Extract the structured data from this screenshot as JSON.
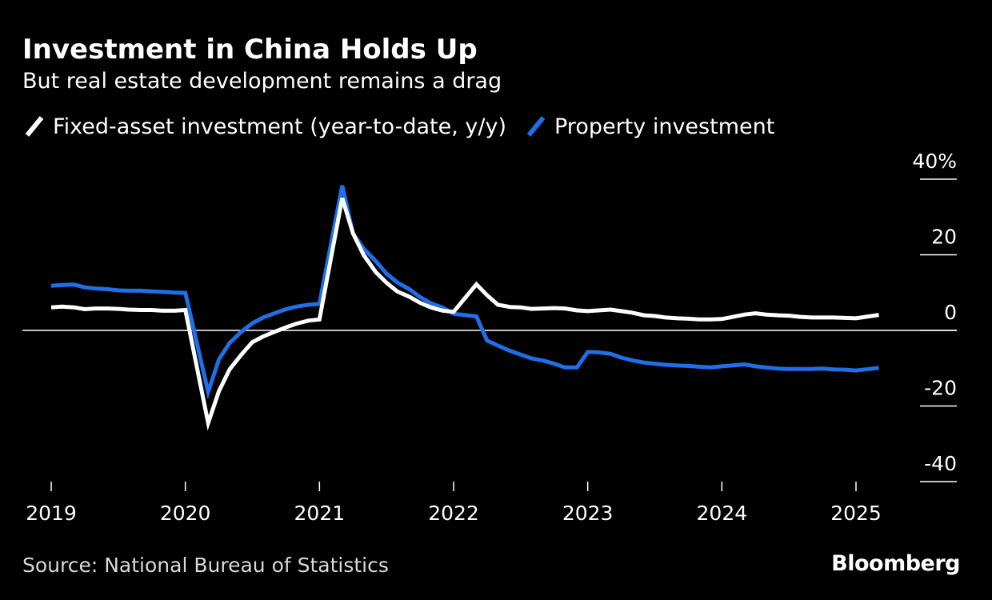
{
  "colors": {
    "background": "#000000",
    "text": "#ffffff",
    "muted": "#d9d9d9",
    "series_fai": "#ffffff",
    "series_property": "#1f6fe8"
  },
  "legend": {
    "fai_label": "Fixed-asset investment (year-to-date, y/y)",
    "property_label": "Property investment"
  },
  "footer": {
    "source": "Source: National Bureau of Statistics",
    "brand": "Bloomberg"
  },
  "chart_data": {
    "type": "line",
    "title": "Investment in China Holds Up",
    "subtitle": "But real estate development remains a drag",
    "xlabel": "",
    "ylabel": "",
    "xlim": [
      2019,
      2025.25
    ],
    "ylim": [
      -40,
      40
    ],
    "x_ticks": [
      2019,
      2020,
      2021,
      2022,
      2023,
      2024,
      2025
    ],
    "y_ticks": [
      {
        "value": 40,
        "label": "40%"
      },
      {
        "value": 20,
        "label": "20"
      },
      {
        "value": 0,
        "label": "0"
      },
      {
        "value": -20,
        "label": "-20"
      },
      {
        "value": -40,
        "label": "-40"
      }
    ],
    "zero_line": true,
    "grid": false,
    "legend_position": "top-left",
    "series": [
      {
        "name": "Fixed-asset investment (year-to-date, y/y)",
        "color_key": "series_fai",
        "points": [
          [
            2019.0,
            6.1
          ],
          [
            2019.08,
            6.3
          ],
          [
            2019.17,
            6.1
          ],
          [
            2019.25,
            5.6
          ],
          [
            2019.33,
            5.8
          ],
          [
            2019.42,
            5.8
          ],
          [
            2019.5,
            5.7
          ],
          [
            2019.58,
            5.5
          ],
          [
            2019.67,
            5.4
          ],
          [
            2019.75,
            5.4
          ],
          [
            2019.83,
            5.2
          ],
          [
            2019.92,
            5.2
          ],
          [
            2020.0,
            5.4
          ],
          [
            2020.17,
            -24.5
          ],
          [
            2020.25,
            -16.1
          ],
          [
            2020.33,
            -10.3
          ],
          [
            2020.42,
            -6.3
          ],
          [
            2020.5,
            -3.1
          ],
          [
            2020.58,
            -1.6
          ],
          [
            2020.67,
            -0.3
          ],
          [
            2020.75,
            0.8
          ],
          [
            2020.83,
            1.8
          ],
          [
            2020.92,
            2.6
          ],
          [
            2021.0,
            2.9
          ],
          [
            2021.17,
            35.0
          ],
          [
            2021.25,
            25.6
          ],
          [
            2021.33,
            19.9
          ],
          [
            2021.42,
            15.4
          ],
          [
            2021.5,
            12.6
          ],
          [
            2021.58,
            10.3
          ],
          [
            2021.67,
            8.9
          ],
          [
            2021.75,
            7.3
          ],
          [
            2021.83,
            6.1
          ],
          [
            2021.92,
            5.2
          ],
          [
            2022.0,
            4.9
          ],
          [
            2022.17,
            12.2
          ],
          [
            2022.25,
            9.3
          ],
          [
            2022.33,
            6.8
          ],
          [
            2022.42,
            6.2
          ],
          [
            2022.5,
            6.1
          ],
          [
            2022.58,
            5.7
          ],
          [
            2022.67,
            5.8
          ],
          [
            2022.75,
            5.9
          ],
          [
            2022.83,
            5.8
          ],
          [
            2022.92,
            5.3
          ],
          [
            2023.0,
            5.1
          ],
          [
            2023.17,
            5.5
          ],
          [
            2023.25,
            5.1
          ],
          [
            2023.33,
            4.7
          ],
          [
            2023.42,
            4.0
          ],
          [
            2023.5,
            3.8
          ],
          [
            2023.58,
            3.4
          ],
          [
            2023.67,
            3.2
          ],
          [
            2023.75,
            3.1
          ],
          [
            2023.83,
            2.9
          ],
          [
            2023.92,
            2.9
          ],
          [
            2024.0,
            3.0
          ],
          [
            2024.17,
            4.2
          ],
          [
            2024.25,
            4.5
          ],
          [
            2024.33,
            4.2
          ],
          [
            2024.42,
            4.0
          ],
          [
            2024.5,
            3.9
          ],
          [
            2024.58,
            3.6
          ],
          [
            2024.67,
            3.4
          ],
          [
            2024.75,
            3.4
          ],
          [
            2024.83,
            3.4
          ],
          [
            2024.92,
            3.3
          ],
          [
            2025.0,
            3.2
          ],
          [
            2025.17,
            4.1
          ]
        ]
      },
      {
        "name": "Property investment",
        "color_key": "series_property",
        "points": [
          [
            2019.0,
            11.8
          ],
          [
            2019.08,
            12.0
          ],
          [
            2019.17,
            12.1
          ],
          [
            2019.25,
            11.4
          ],
          [
            2019.33,
            11.1
          ],
          [
            2019.42,
            10.9
          ],
          [
            2019.5,
            10.6
          ],
          [
            2019.58,
            10.5
          ],
          [
            2019.67,
            10.5
          ],
          [
            2019.75,
            10.3
          ],
          [
            2019.83,
            10.2
          ],
          [
            2019.92,
            10.0
          ],
          [
            2020.0,
            9.9
          ],
          [
            2020.17,
            -16.3
          ],
          [
            2020.25,
            -7.7
          ],
          [
            2020.33,
            -3.3
          ],
          [
            2020.42,
            -0.3
          ],
          [
            2020.5,
            1.9
          ],
          [
            2020.58,
            3.4
          ],
          [
            2020.67,
            4.6
          ],
          [
            2020.75,
            5.6
          ],
          [
            2020.83,
            6.3
          ],
          [
            2020.92,
            6.8
          ],
          [
            2021.0,
            7.0
          ],
          [
            2021.17,
            38.3
          ],
          [
            2021.25,
            25.6
          ],
          [
            2021.33,
            21.6
          ],
          [
            2021.42,
            18.3
          ],
          [
            2021.5,
            15.0
          ],
          [
            2021.58,
            12.7
          ],
          [
            2021.67,
            10.9
          ],
          [
            2021.75,
            8.8
          ],
          [
            2021.83,
            7.2
          ],
          [
            2021.92,
            6.0
          ],
          [
            2022.0,
            4.4
          ],
          [
            2022.17,
            3.7
          ],
          [
            2022.25,
            -2.7
          ],
          [
            2022.33,
            -4.0
          ],
          [
            2022.42,
            -5.4
          ],
          [
            2022.5,
            -6.4
          ],
          [
            2022.58,
            -7.4
          ],
          [
            2022.67,
            -8.0
          ],
          [
            2022.75,
            -8.8
          ],
          [
            2022.83,
            -9.8
          ],
          [
            2022.92,
            -9.8
          ],
          [
            2023.0,
            -5.7
          ],
          [
            2023.08,
            -5.8
          ],
          [
            2023.17,
            -6.2
          ],
          [
            2023.25,
            -7.2
          ],
          [
            2023.33,
            -7.9
          ],
          [
            2023.42,
            -8.5
          ],
          [
            2023.5,
            -8.8
          ],
          [
            2023.58,
            -9.1
          ],
          [
            2023.67,
            -9.3
          ],
          [
            2023.75,
            -9.4
          ],
          [
            2023.83,
            -9.6
          ],
          [
            2023.92,
            -9.8
          ],
          [
            2024.0,
            -9.5
          ],
          [
            2024.17,
            -9.0
          ],
          [
            2024.25,
            -9.5
          ],
          [
            2024.33,
            -9.8
          ],
          [
            2024.42,
            -10.1
          ],
          [
            2024.5,
            -10.2
          ],
          [
            2024.58,
            -10.2
          ],
          [
            2024.67,
            -10.2
          ],
          [
            2024.75,
            -10.1
          ],
          [
            2024.83,
            -10.3
          ],
          [
            2024.92,
            -10.4
          ],
          [
            2025.0,
            -10.6
          ],
          [
            2025.17,
            -9.9
          ]
        ]
      }
    ]
  }
}
